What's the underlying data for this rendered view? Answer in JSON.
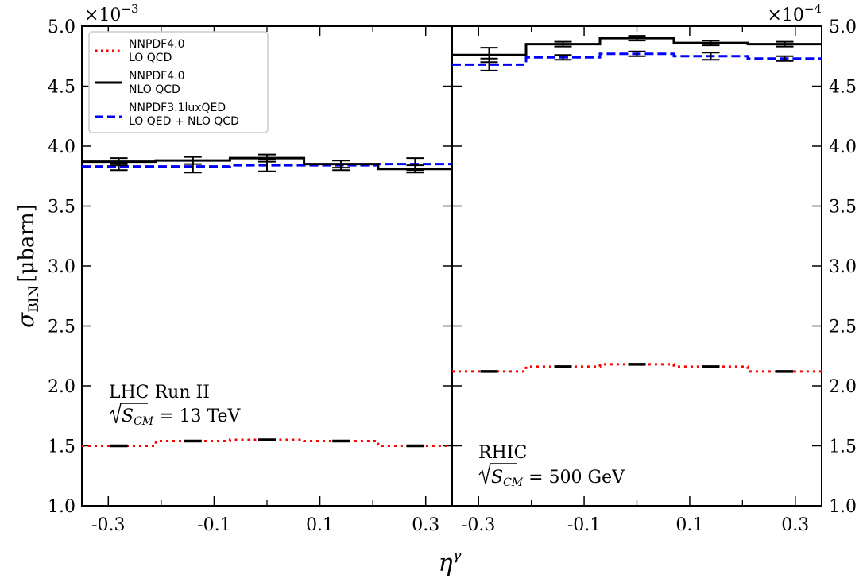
{
  "chart_data": {
    "type": "line",
    "ylabel_main": "σ",
    "ylabel_sub": "BIN",
    "ylabel_unit": "[μbarn]",
    "xlabel_main": "η",
    "xlabel_sup": "γ",
    "legend": {
      "placement": "top-left",
      "entries": [
        {
          "line1": "NNPDF4.0",
          "line2": "LO QCD",
          "color": "#ff0000",
          "style": "dotted"
        },
        {
          "line1": "NNPDF4.0",
          "line2": "NLO QCD",
          "color": "#000000",
          "style": "solid"
        },
        {
          "line1": "NNPDF3.1luxQED",
          "line2": "LO QED + NLO QCD",
          "color": "#0000ff",
          "style": "dashed"
        }
      ]
    },
    "panels": [
      {
        "id": "lhc",
        "multiplier_base": "×10",
        "multiplier_exp": "−3",
        "annotation_line1": "LHC Run II",
        "annotation_sqrt": "S",
        "annotation_sub": "CM",
        "annotation_rest": " = 13 TeV",
        "xlim": [
          -0.35,
          0.35
        ],
        "ylim": [
          1.0,
          5.0
        ],
        "xticks": [
          "-0.3",
          "-0.1",
          "0.1",
          "0.3"
        ],
        "yticks": [
          "1.0",
          "1.5",
          "2.0",
          "2.5",
          "3.0",
          "3.5",
          "4.0",
          "4.5",
          "5.0"
        ],
        "bin_edges": [
          -0.35,
          -0.21,
          -0.07,
          0.07,
          0.21,
          0.35
        ],
        "bin_centers": [
          -0.28,
          -0.14,
          0.0,
          0.14,
          0.28
        ],
        "series": [
          {
            "key": "lo",
            "values": [
              1.5,
              1.54,
              1.55,
              1.54,
              1.5
            ],
            "errors": [
              0.005,
              0.005,
              0.005,
              0.005,
              0.005
            ]
          },
          {
            "key": "nlo",
            "values": [
              3.87,
              3.88,
              3.9,
              3.85,
              3.81
            ],
            "errors": [
              0.03,
              0.03,
              0.03,
              0.03,
              0.03
            ]
          },
          {
            "key": "qed",
            "values": [
              3.83,
              3.83,
              3.84,
              3.84,
              3.85
            ],
            "errors": [
              0.03,
              0.05,
              0.05,
              0.04,
              0.05
            ]
          }
        ]
      },
      {
        "id": "rhic",
        "multiplier_base": "×10",
        "multiplier_exp": "−4",
        "annotation_line1": "RHIC",
        "annotation_sqrt": "S",
        "annotation_sub": "CM",
        "annotation_rest": " = 500 GeV",
        "xlim": [
          -0.35,
          0.35
        ],
        "ylim": [
          1.0,
          5.0
        ],
        "xticks": [
          "-0.3",
          "-0.1",
          "0.1",
          "0.3"
        ],
        "yticks": [
          "1.0",
          "1.5",
          "2.0",
          "2.5",
          "3.0",
          "3.5",
          "4.0",
          "4.5",
          "5.0"
        ],
        "bin_edges": [
          -0.35,
          -0.21,
          -0.07,
          0.07,
          0.21,
          0.35
        ],
        "bin_centers": [
          -0.28,
          -0.14,
          0.0,
          0.14,
          0.28
        ],
        "series": [
          {
            "key": "lo",
            "values": [
              2.12,
              2.16,
              2.18,
              2.16,
              2.12
            ],
            "errors": [
              0.005,
              0.005,
              0.005,
              0.005,
              0.005
            ]
          },
          {
            "key": "nlo",
            "values": [
              4.76,
              4.85,
              4.9,
              4.86,
              4.85
            ],
            "errors": [
              0.06,
              0.02,
              0.02,
              0.02,
              0.02
            ]
          },
          {
            "key": "qed",
            "values": [
              4.68,
              4.74,
              4.77,
              4.75,
              4.73
            ],
            "errors": [
              0.05,
              0.02,
              0.02,
              0.03,
              0.02
            ]
          }
        ]
      }
    ]
  }
}
